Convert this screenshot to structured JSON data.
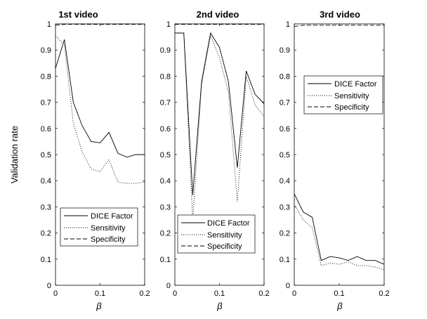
{
  "chart_data": [
    {
      "type": "line",
      "title": "1st video",
      "xlabel": "β",
      "ylabel": "Validation rate",
      "xlim": [
        0,
        0.2
      ],
      "ylim": [
        0,
        1
      ],
      "xticks": [
        "0",
        "0.1",
        "0.2"
      ],
      "yticks": [
        "0",
        "0.1",
        "0.2",
        "0.3",
        "0.4",
        "0.5",
        "0.6",
        "0.7",
        "0.8",
        "0.9",
        "1"
      ],
      "legend_position": "bottom",
      "x": [
        0,
        0.02,
        0.04,
        0.06,
        0.08,
        0.1,
        0.12,
        0.14,
        0.16,
        0.18,
        0.2
      ],
      "series": [
        {
          "name": "DICE Factor",
          "style": "solid",
          "values": [
            0.83,
            0.94,
            0.7,
            0.61,
            0.55,
            0.545,
            0.585,
            0.505,
            0.49,
            0.5,
            0.5
          ]
        },
        {
          "name": "Sensitivity",
          "style": "dotted",
          "values": [
            0.955,
            0.92,
            0.62,
            0.51,
            0.445,
            0.435,
            0.48,
            0.395,
            0.39,
            0.39,
            0.395
          ]
        },
        {
          "name": "Specificity",
          "style": "dashed",
          "values": [
            0.995,
            0.998,
            0.998,
            0.998,
            0.998,
            0.998,
            0.998,
            0.998,
            0.998,
            0.998,
            0.998
          ]
        }
      ]
    },
    {
      "type": "line",
      "title": "2nd video",
      "xlabel": "β",
      "ylabel": "",
      "xlim": [
        0,
        0.2
      ],
      "ylim": [
        0,
        1
      ],
      "xticks": [
        "0",
        "0.1",
        "0.2"
      ],
      "yticks": [
        "0",
        "0.1",
        "0.2",
        "0.3",
        "0.4",
        "0.5",
        "0.6",
        "0.7",
        "0.8",
        "0.9",
        "1"
      ],
      "legend_position": "bottom",
      "x": [
        0,
        0.02,
        0.04,
        0.06,
        0.08,
        0.1,
        0.12,
        0.14,
        0.16,
        0.18,
        0.2
      ],
      "series": [
        {
          "name": "DICE Factor",
          "style": "solid",
          "values": [
            0.965,
            0.965,
            0.345,
            0.78,
            0.965,
            0.91,
            0.78,
            0.45,
            0.82,
            0.73,
            0.695
          ]
        },
        {
          "name": "Sensitivity",
          "style": "dotted",
          "values": [
            0.965,
            0.965,
            0.25,
            0.77,
            0.955,
            0.87,
            0.74,
            0.32,
            0.8,
            0.69,
            0.645
          ]
        },
        {
          "name": "Specificity",
          "style": "dashed",
          "values": [
            0.998,
            0.998,
            0.998,
            0.998,
            0.998,
            0.998,
            0.998,
            0.998,
            0.998,
            0.998,
            0.998
          ]
        }
      ]
    },
    {
      "type": "line",
      "title": "3rd video",
      "xlabel": "β",
      "ylabel": "",
      "xlim": [
        0,
        0.2
      ],
      "ylim": [
        0,
        1
      ],
      "xticks": [
        "0",
        "0.1",
        "0.2"
      ],
      "yticks": [
        "0",
        "0.1",
        "0.2",
        "0.3",
        "0.4",
        "0.5",
        "0.6",
        "0.7",
        "0.8",
        "0.9",
        "1"
      ],
      "legend_position": "top",
      "x": [
        0,
        0.02,
        0.04,
        0.06,
        0.08,
        0.1,
        0.12,
        0.14,
        0.16,
        0.18,
        0.2
      ],
      "series": [
        {
          "name": "DICE Factor",
          "style": "solid",
          "values": [
            0.35,
            0.28,
            0.26,
            0.095,
            0.11,
            0.105,
            0.095,
            0.11,
            0.095,
            0.095,
            0.08
          ]
        },
        {
          "name": "Sensitivity",
          "style": "dotted",
          "values": [
            0.31,
            0.25,
            0.22,
            0.075,
            0.085,
            0.08,
            0.09,
            0.075,
            0.075,
            0.07,
            0.06
          ]
        },
        {
          "name": "Specificity",
          "style": "dashed",
          "values": [
            0.99,
            0.995,
            0.995,
            0.995,
            0.995,
            0.995,
            0.995,
            0.995,
            0.995,
            0.995,
            0.995
          ]
        }
      ]
    }
  ]
}
